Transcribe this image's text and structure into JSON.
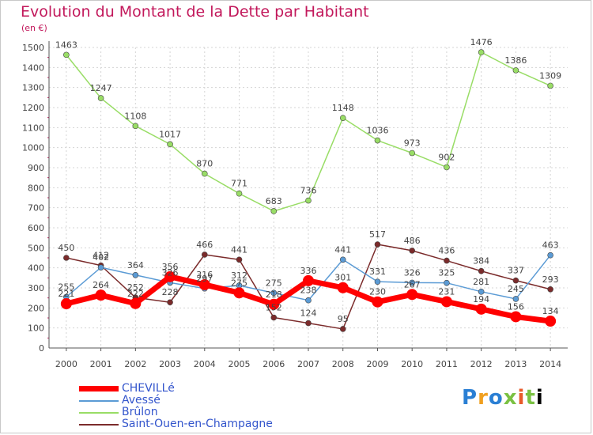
{
  "chart_data": {
    "type": "line",
    "title": "Evolution du Montant de la Dette par Habitant",
    "subtitle": "(en €)",
    "xlabel": "",
    "ylabel": "",
    "x": [
      "2000",
      "2001",
      "2002",
      "2003",
      "2004",
      "2005",
      "2006",
      "2007",
      "2008",
      "2009",
      "2010",
      "2011",
      "2012",
      "2013",
      "2014"
    ],
    "ylim": [
      0,
      1500
    ],
    "yticks": [
      0,
      100,
      200,
      300,
      400,
      500,
      600,
      700,
      800,
      900,
      1000,
      1100,
      1200,
      1300,
      1400,
      1500
    ],
    "grid": true,
    "legend_position": "bottom-left",
    "series": [
      {
        "name": "CHEVILLé",
        "color": "#ff0000",
        "values": [
          221,
          264,
          222,
          356,
          316,
          275,
          218,
          336,
          301,
          230,
          267,
          231,
          194,
          156,
          134
        ]
      },
      {
        "name": "Avessé",
        "color": "#5b9bd5",
        "values": [
          255,
          402,
          364,
          326,
          297,
          312,
          275,
          238,
          441,
          331,
          326,
          325,
          281,
          245,
          463
        ]
      },
      {
        "name": "Brûlon",
        "color": "#99dd66",
        "values": [
          1463,
          1247,
          1108,
          1017,
          870,
          771,
          683,
          736,
          1148,
          1036,
          973,
          902,
          1476,
          1386,
          1309
        ]
      },
      {
        "name": "Saint-Ouen-en-Champagne",
        "color": "#7b2b2b",
        "values": [
          450,
          412,
          252,
          228,
          466,
          441,
          152,
          124,
          95,
          517,
          486,
          436,
          384,
          337,
          293
        ]
      }
    ]
  },
  "brand": {
    "letters": [
      "P",
      "r",
      "o",
      "x",
      "i",
      "t",
      "i"
    ]
  }
}
